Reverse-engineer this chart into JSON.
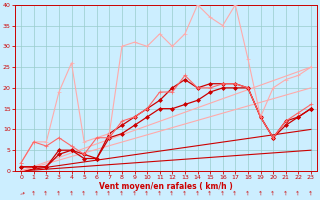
{
  "xlabel": "Vent moyen/en rafales ( km/h )",
  "background_color": "#cceeff",
  "grid_color": "#99cccc",
  "xlim": [
    -0.5,
    23.5
  ],
  "ylim": [
    0,
    40
  ],
  "xticks": [
    0,
    1,
    2,
    3,
    4,
    5,
    6,
    7,
    8,
    9,
    10,
    11,
    12,
    13,
    14,
    15,
    16,
    17,
    18,
    19,
    20,
    21,
    22,
    23
  ],
  "yticks": [
    0,
    5,
    10,
    15,
    20,
    25,
    30,
    35,
    40
  ],
  "series": [
    {
      "x": [
        0,
        23
      ],
      "y": [
        0,
        5
      ],
      "color": "#cc0000",
      "linewidth": 0.8,
      "marker": null,
      "markersize": 0,
      "linestyle": "-"
    },
    {
      "x": [
        0,
        23
      ],
      "y": [
        0,
        10
      ],
      "color": "#cc0000",
      "linewidth": 0.8,
      "marker": null,
      "markersize": 0,
      "linestyle": "-"
    },
    {
      "x": [
        0,
        23
      ],
      "y": [
        0,
        20
      ],
      "color": "#ffaaaa",
      "linewidth": 0.8,
      "marker": null,
      "markersize": 0,
      "linestyle": "-"
    },
    {
      "x": [
        0,
        23
      ],
      "y": [
        0,
        25
      ],
      "color": "#ffaaaa",
      "linewidth": 0.8,
      "marker": null,
      "markersize": 0,
      "linestyle": "-"
    },
    {
      "x": [
        0,
        1,
        2,
        3,
        4,
        5,
        6,
        7,
        8,
        9,
        10,
        11,
        12,
        13,
        14,
        15,
        16,
        17,
        18,
        19,
        20,
        21,
        22,
        23
      ],
      "y": [
        1,
        1,
        1,
        4,
        5,
        4,
        3,
        8,
        9,
        11,
        13,
        15,
        15,
        16,
        17,
        19,
        20,
        20,
        20,
        13,
        8,
        11,
        13,
        15
      ],
      "color": "#cc0000",
      "linewidth": 0.9,
      "marker": "D",
      "markersize": 2,
      "linestyle": "-"
    },
    {
      "x": [
        0,
        1,
        2,
        3,
        4,
        5,
        6,
        7,
        8,
        9,
        10,
        11,
        12,
        13,
        14,
        15,
        16,
        17,
        18,
        19,
        20,
        21,
        22,
        23
      ],
      "y": [
        1,
        1,
        1,
        5,
        5,
        3,
        3,
        9,
        11,
        13,
        15,
        17,
        20,
        22,
        20,
        21,
        21,
        21,
        20,
        13,
        8,
        12,
        13,
        15
      ],
      "color": "#cc0000",
      "linewidth": 0.9,
      "marker": "D",
      "markersize": 2,
      "linestyle": "-"
    },
    {
      "x": [
        0,
        1,
        2,
        3,
        4,
        5,
        6,
        7,
        8,
        9,
        10,
        11,
        12,
        13,
        14,
        15,
        16,
        17,
        18,
        19,
        20,
        21,
        22,
        23
      ],
      "y": [
        2,
        7,
        7,
        19,
        26,
        7,
        8,
        9,
        30,
        31,
        30,
        33,
        30,
        33,
        40,
        37,
        35,
        40,
        27,
        13,
        20,
        22,
        23,
        25
      ],
      "color": "#ffaaaa",
      "linewidth": 0.8,
      "marker": "+",
      "markersize": 3,
      "linestyle": "-"
    },
    {
      "x": [
        0,
        1,
        2,
        3,
        4,
        5,
        6,
        7,
        8,
        9,
        10,
        11,
        12,
        13,
        14,
        15,
        16,
        17,
        18,
        19,
        20,
        21,
        22,
        23
      ],
      "y": [
        2,
        7,
        6,
        8,
        6,
        4,
        8,
        8,
        12,
        13,
        15,
        19,
        19,
        23,
        20,
        20,
        21,
        21,
        20,
        13,
        8,
        12,
        14,
        16
      ],
      "color": "#ff6666",
      "linewidth": 0.8,
      "marker": "+",
      "markersize": 3,
      "linestyle": "-"
    }
  ],
  "arrow_chars": [
    "↘",
    "↑",
    "↑",
    "↗",
    "↗",
    "↗",
    "↗",
    "↗",
    "↗",
    "↗",
    "↗",
    "↗",
    "↗",
    "↗",
    "↗",
    "↗",
    "↗",
    "↗",
    "↗",
    "↗",
    "↗",
    "↗",
    "↗",
    "↗"
  ]
}
